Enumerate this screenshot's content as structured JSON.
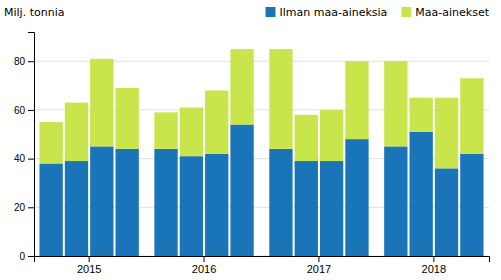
{
  "chart_data": {
    "type": "bar",
    "stacked": true,
    "y_label": "Milj. tonnia",
    "categories": [
      "2015",
      null,
      null,
      null,
      "2016",
      null,
      null,
      null,
      "2017",
      null,
      null,
      null,
      "2018",
      null,
      null,
      null
    ],
    "series": [
      {
        "name": "Ilman maa-aineksia",
        "color": "#1a75b8",
        "values": [
          38,
          39,
          45,
          44,
          44,
          41,
          42,
          54,
          44,
          39,
          39,
          48,
          45,
          51,
          36,
          42
        ]
      },
      {
        "name": "Maa-ainekset",
        "color": "#c8e64c",
        "values": [
          17,
          24,
          36,
          25,
          15,
          20,
          26,
          31,
          41,
          19,
          21,
          32,
          35,
          14,
          29,
          31
        ]
      }
    ],
    "ylim": [
      0,
      92
    ],
    "yticks": [
      0,
      20,
      40,
      60,
      80
    ],
    "grid": true,
    "legend": "upper right"
  }
}
